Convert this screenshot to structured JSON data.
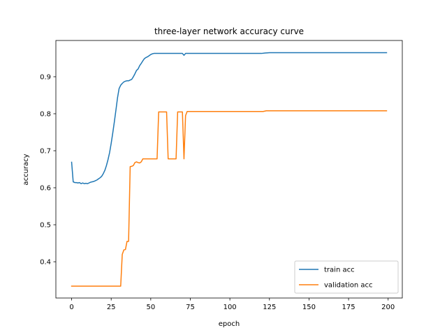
{
  "chart_data": {
    "type": "line",
    "title": "three-layer network accuracy curve",
    "xlabel": "epoch",
    "ylabel": "accuracy",
    "xlim": [
      -9.95,
      208.95
    ],
    "ylim": [
      0.302,
      0.998
    ],
    "xticks": [
      0,
      25,
      50,
      75,
      100,
      125,
      150,
      175,
      200
    ],
    "yticks": [
      0.4,
      0.5,
      0.6,
      0.7,
      0.8,
      0.9
    ],
    "xtick_labels": [
      "0",
      "25",
      "50",
      "75",
      "100",
      "125",
      "150",
      "175",
      "200"
    ],
    "ytick_labels": [
      "0.4",
      "0.5",
      "0.6",
      "0.7",
      "0.8",
      "0.9"
    ],
    "grid": false,
    "legend_position": "lower-right",
    "series": [
      {
        "name": "train acc",
        "color": "#1f77b4",
        "points": [
          [
            0,
            0.669
          ],
          [
            1,
            0.616
          ],
          [
            2,
            0.614
          ],
          [
            3,
            0.614
          ],
          [
            4,
            0.613
          ],
          [
            5,
            0.614
          ],
          [
            6,
            0.611
          ],
          [
            7,
            0.613
          ],
          [
            8,
            0.611
          ],
          [
            9,
            0.612
          ],
          [
            10,
            0.611
          ],
          [
            11,
            0.613
          ],
          [
            12,
            0.615
          ],
          [
            13,
            0.616
          ],
          [
            14,
            0.617
          ],
          [
            15,
            0.619
          ],
          [
            16,
            0.621
          ],
          [
            17,
            0.624
          ],
          [
            18,
            0.627
          ],
          [
            19,
            0.631
          ],
          [
            20,
            0.638
          ],
          [
            21,
            0.647
          ],
          [
            22,
            0.66
          ],
          [
            23,
            0.676
          ],
          [
            24,
            0.695
          ],
          [
            25,
            0.72
          ],
          [
            26,
            0.748
          ],
          [
            27,
            0.778
          ],
          [
            28,
            0.81
          ],
          [
            29,
            0.843
          ],
          [
            30,
            0.868
          ],
          [
            31,
            0.877
          ],
          [
            32,
            0.882
          ],
          [
            33,
            0.886
          ],
          [
            34,
            0.888
          ],
          [
            35,
            0.889
          ],
          [
            36,
            0.889
          ],
          [
            37,
            0.891
          ],
          [
            38,
            0.893
          ],
          [
            39,
            0.9
          ],
          [
            40,
            0.908
          ],
          [
            41,
            0.917
          ],
          [
            42,
            0.921
          ],
          [
            43,
            0.93
          ],
          [
            44,
            0.936
          ],
          [
            45,
            0.943
          ],
          [
            46,
            0.949
          ],
          [
            47,
            0.952
          ],
          [
            48,
            0.954
          ],
          [
            49,
            0.957
          ],
          [
            50,
            0.96
          ],
          [
            51,
            0.962
          ],
          [
            52,
            0.963
          ],
          [
            55,
            0.963
          ],
          [
            60,
            0.963
          ],
          [
            65,
            0.963
          ],
          [
            70,
            0.963
          ],
          [
            71,
            0.958
          ],
          [
            72,
            0.963
          ],
          [
            73,
            0.963
          ],
          [
            80,
            0.963
          ],
          [
            90,
            0.963
          ],
          [
            100,
            0.963
          ],
          [
            110,
            0.963
          ],
          [
            120,
            0.963
          ],
          [
            122,
            0.964
          ],
          [
            125,
            0.965
          ],
          [
            130,
            0.965
          ],
          [
            150,
            0.965
          ],
          [
            175,
            0.965
          ],
          [
            199,
            0.965
          ]
        ]
      },
      {
        "name": "validation acc",
        "color": "#ff7f0e",
        "points": [
          [
            0,
            0.334
          ],
          [
            10,
            0.334
          ],
          [
            20,
            0.334
          ],
          [
            31,
            0.334
          ],
          [
            32,
            0.42
          ],
          [
            33,
            0.432
          ],
          [
            34,
            0.433
          ],
          [
            35,
            0.455
          ],
          [
            36,
            0.455
          ],
          [
            37,
            0.657
          ],
          [
            38,
            0.658
          ],
          [
            39,
            0.66
          ],
          [
            40,
            0.668
          ],
          [
            41,
            0.67
          ],
          [
            42,
            0.668
          ],
          [
            43,
            0.667
          ],
          [
            44,
            0.67
          ],
          [
            45,
            0.678
          ],
          [
            46,
            0.678
          ],
          [
            50,
            0.678
          ],
          [
            54,
            0.678
          ],
          [
            55,
            0.805
          ],
          [
            60,
            0.805
          ],
          [
            61,
            0.678
          ],
          [
            62,
            0.678
          ],
          [
            66,
            0.678
          ],
          [
            67,
            0.805
          ],
          [
            70,
            0.805
          ],
          [
            71,
            0.678
          ],
          [
            72,
            0.795
          ],
          [
            73,
            0.806
          ],
          [
            75,
            0.806
          ],
          [
            80,
            0.806
          ],
          [
            90,
            0.806
          ],
          [
            100,
            0.806
          ],
          [
            110,
            0.806
          ],
          [
            121,
            0.806
          ],
          [
            123,
            0.808
          ],
          [
            130,
            0.808
          ],
          [
            150,
            0.808
          ],
          [
            175,
            0.808
          ],
          [
            199,
            0.808
          ]
        ]
      }
    ]
  }
}
